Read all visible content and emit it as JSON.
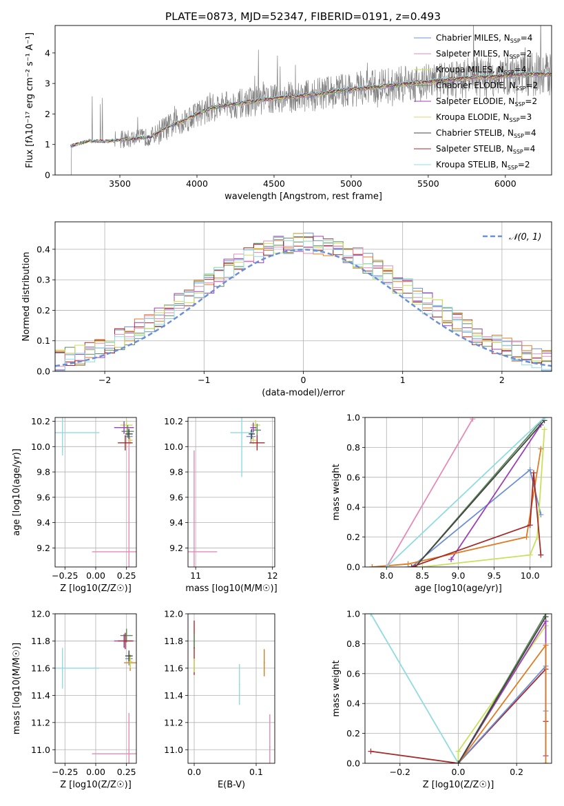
{
  "figure_title": "PLATE=0873, MJD=52347, FIBERID=0191, z=0.493",
  "model_colors": [
    "#6b8fd6",
    "#e58ab8",
    "#c8e05a",
    "#5a8a5a",
    "#9c3fb3",
    "#e0d070",
    "#444444",
    "#a52a2a",
    "#8fdbe0"
  ],
  "hist_colors": [
    "#6b8fd6",
    "#e07a20",
    "#5a8a5a",
    "#9c3fb3",
    "#a52a2a",
    "#e58ab8",
    "#c8e05a",
    "#8fdbe0"
  ],
  "chart_data": [
    {
      "type": "line",
      "xlabel": "wavelength [Angstrom, rest frame]",
      "ylabel": "Flux [fλ10⁻¹⁷ erg cm⁻² s⁻¹ A⁻¹]",
      "xlim": [
        3080,
        6300
      ],
      "ylim": [
        0,
        4.9
      ],
      "xticks": [
        3500,
        4000,
        4500,
        5000,
        5500,
        6000
      ],
      "yticks": [
        0,
        1,
        2,
        3,
        4
      ],
      "grid": false,
      "legend_position": "upper-right",
      "legend": [
        "Chabrier MILES, N_SSP=4",
        "Salpeter MILES, N_SSP=2",
        "Kroupa MILES, N_SSP=4",
        "Chabrier ELODIE, N_SSP=2",
        "Salpeter ELODIE, N_SSP=2",
        "Kroupa ELODIE, N_SSP=3",
        "Chabrier STELIB, N_SSP=4",
        "Salpeter STELIB, N_SSP=4",
        "Kroupa STELIB, N_SSP=2"
      ],
      "data_color": "#808080",
      "data_range": [
        3180,
        6300
      ],
      "model_trend": {
        "x": [
          3180,
          3250,
          3300,
          3400,
          3500,
          3600,
          3700,
          3800,
          3900,
          4000,
          4100,
          4200,
          4300,
          4400,
          4500,
          4600,
          4700,
          4800,
          4900,
          5000,
          5100,
          5200,
          5300,
          5400,
          5500,
          5600,
          5700,
          5800,
          5900,
          6000,
          6100,
          6200
        ],
        "y": [
          0.95,
          1.05,
          1.12,
          1.1,
          1.15,
          1.2,
          1.25,
          1.55,
          1.75,
          2.0,
          2.2,
          2.3,
          2.35,
          2.45,
          2.5,
          2.55,
          2.6,
          2.65,
          2.75,
          2.8,
          2.85,
          2.9,
          2.95,
          3.0,
          3.05,
          3.1,
          3.15,
          3.2,
          3.2,
          3.25,
          3.3,
          3.3
        ]
      }
    },
    {
      "type": "line",
      "xlabel": "(data-model)/error",
      "ylabel": "Normed distribution",
      "xlim": [
        -2.5,
        2.5
      ],
      "ylim": [
        0,
        0.49
      ],
      "xticks": [
        -2,
        -1,
        0,
        1,
        2
      ],
      "yticks": [
        0.0,
        0.1,
        0.2,
        0.3,
        0.4
      ],
      "grid": true,
      "legend": [
        "𝒩(0, 1)"
      ],
      "legend_position": "upper-right",
      "bin_width": 0.1
    },
    {
      "type": "scatter",
      "xlabel": "Z [log10(Z/Z☉)]",
      "ylabel": "age [log10(age/yr)]",
      "xlim": [
        -0.33,
        0.33
      ],
      "ylim": [
        9.05,
        10.23
      ],
      "xticks": [
        -0.25,
        0.0,
        0.25
      ],
      "yticks": [
        9.2,
        9.4,
        9.6,
        9.8,
        10.0,
        10.2
      ],
      "grid": true,
      "points": [
        {
          "x": 0.27,
          "y": 10.08,
          "xerr": 0.03,
          "yerr": 0.05,
          "c": 0
        },
        {
          "x": 0.27,
          "y": 9.17,
          "xerr": 0.3,
          "yerr": 0.95,
          "c": 1
        },
        {
          "x": 0.25,
          "y": 10.17,
          "xerr": 0.05,
          "yerr": 0.04,
          "c": 2
        },
        {
          "x": 0.26,
          "y": 10.12,
          "xerr": 0.05,
          "yerr": 0.05,
          "c": 3
        },
        {
          "x": 0.23,
          "y": 10.15,
          "xerr": 0.08,
          "yerr": 0.05,
          "c": 4
        },
        {
          "x": 0.28,
          "y": 10.05,
          "xerr": 0.02,
          "yerr": 0.03,
          "c": 5
        },
        {
          "x": 0.27,
          "y": 10.1,
          "xerr": 0.03,
          "yerr": 0.04,
          "c": 6
        },
        {
          "x": 0.24,
          "y": 10.03,
          "xerr": 0.06,
          "yerr": 0.06,
          "c": 7
        },
        {
          "x": -0.27,
          "y": 10.11,
          "xerr": 0.3,
          "yerr": 0.18,
          "c": 8
        }
      ]
    },
    {
      "type": "scatter",
      "xlabel": "mass [log10(M/M☉)]",
      "ylabel": "",
      "xlim": [
        10.9,
        12.03
      ],
      "ylim": [
        9.05,
        10.23
      ],
      "xticks": [
        11,
        12
      ],
      "yticks": [
        9.2,
        9.4,
        9.6,
        9.8,
        10.0,
        10.2
      ],
      "grid": true,
      "points": [
        {
          "x": 11.72,
          "y": 10.08,
          "xerr": 0.06,
          "yerr": 0.05,
          "c": 0
        },
        {
          "x": 10.98,
          "y": 9.17,
          "xerr": 0.3,
          "yerr": 0.8,
          "c": 1
        },
        {
          "x": 11.78,
          "y": 10.17,
          "xerr": 0.06,
          "yerr": 0.04,
          "c": 2
        },
        {
          "x": 11.8,
          "y": 10.13,
          "xerr": 0.05,
          "yerr": 0.05,
          "c": 3
        },
        {
          "x": 11.75,
          "y": 10.15,
          "xerr": 0.04,
          "yerr": 0.04,
          "c": 4
        },
        {
          "x": 11.75,
          "y": 10.05,
          "xerr": 0.04,
          "yerr": 0.03,
          "c": 5
        },
        {
          "x": 11.73,
          "y": 10.1,
          "xerr": 0.04,
          "yerr": 0.04,
          "c": 6
        },
        {
          "x": 11.8,
          "y": 10.03,
          "xerr": 0.1,
          "yerr": 0.06,
          "c": 7
        },
        {
          "x": 11.6,
          "y": 10.11,
          "xerr": 0.15,
          "yerr": 0.35,
          "c": 8
        }
      ]
    },
    {
      "type": "line",
      "xlabel": "age [log10(age/yr)]",
      "ylabel": "mass weight",
      "xlim": [
        7.7,
        10.3
      ],
      "ylim": [
        0,
        1
      ],
      "xticks": [
        8.0,
        8.5,
        9.0,
        9.5,
        10.0
      ],
      "yticks": [
        0.0,
        0.2,
        0.4,
        0.6,
        0.8,
        1.0
      ],
      "grid": true,
      "series": [
        {
          "c": 0,
          "x": [
            8.3,
            8.35,
            10.0,
            10.15
          ],
          "y": [
            0.0,
            0.0,
            0.65,
            0.35
          ]
        },
        {
          "c": 1,
          "x": [
            7.8,
            8.0,
            9.2
          ],
          "y": [
            0.0,
            0.0,
            0.99
          ]
        },
        {
          "c": 2,
          "x": [
            8.5,
            10.0,
            10.1,
            10.2
          ],
          "y": [
            0.0,
            0.08,
            0.2,
            0.92
          ]
        },
        {
          "c": 3,
          "x": [
            8.4,
            10.2
          ],
          "y": [
            0.0,
            1.0
          ]
        },
        {
          "c": 4,
          "x": [
            8.9,
            10.15
          ],
          "y": [
            0.05,
            0.95
          ]
        },
        {
          "c": 9,
          "x": [
            7.8,
            8.3,
            9.95,
            10.15
          ],
          "y": [
            0.0,
            0.02,
            0.2,
            0.79
          ]
        },
        {
          "c": 6,
          "x": [
            8.4,
            10.2
          ],
          "y": [
            0.0,
            0.98
          ]
        },
        {
          "c": 7,
          "x": [
            8.35,
            10.0,
            10.05,
            10.15
          ],
          "y": [
            0.0,
            0.28,
            0.63,
            0.08
          ]
        },
        {
          "c": 8,
          "x": [
            8.0,
            10.2
          ],
          "y": [
            0.0,
            1.0
          ]
        }
      ]
    },
    {
      "type": "scatter",
      "xlabel": "Z [log10(Z/Z☉)]",
      "ylabel": "mass [log10(M/M☉)]",
      "xlim": [
        -0.33,
        0.33
      ],
      "ylim": [
        10.9,
        12.0
      ],
      "xticks": [
        -0.25,
        0.0,
        0.25
      ],
      "yticks": [
        11.0,
        11.2,
        11.4,
        11.6,
        11.8,
        12.0
      ],
      "grid": true,
      "points": [
        {
          "x": 0.27,
          "y": 11.67,
          "xerr": 0.03,
          "yerr": 0.05,
          "c": 0
        },
        {
          "x": 0.27,
          "y": 10.97,
          "xerr": 0.3,
          "yerr": 0.3,
          "c": 1
        },
        {
          "x": 0.28,
          "y": 11.64,
          "xerr": 0.05,
          "yerr": 0.06,
          "c": 9
        },
        {
          "x": 0.25,
          "y": 11.84,
          "xerr": 0.05,
          "yerr": 0.05,
          "c": 3
        },
        {
          "x": 0.23,
          "y": 11.8,
          "xerr": 0.08,
          "yerr": 0.05,
          "c": 4
        },
        {
          "x": 0.28,
          "y": 11.65,
          "xerr": 0.02,
          "yerr": 0.05,
          "c": 2
        },
        {
          "x": 0.27,
          "y": 11.69,
          "xerr": 0.03,
          "yerr": 0.04,
          "c": 6
        },
        {
          "x": 0.24,
          "y": 11.8,
          "xerr": 0.06,
          "yerr": 0.06,
          "c": 7
        },
        {
          "x": -0.27,
          "y": 11.6,
          "xerr": 0.3,
          "yerr": 0.15,
          "c": 8
        }
      ]
    },
    {
      "type": "scatter",
      "xlabel": "E(B-V)",
      "ylabel": "",
      "xlim": [
        -0.01,
        0.13
      ],
      "ylim": [
        10.9,
        12.0
      ],
      "xticks": [
        0.0,
        0.1
      ],
      "yticks": [
        11.0,
        11.2,
        11.4,
        11.6,
        11.8,
        12.0
      ],
      "grid": true,
      "points": [
        {
          "x": 0.0,
          "y": 11.75,
          "xerr": 0,
          "yerr": 0.2,
          "c": 7
        },
        {
          "x": 0.0,
          "y": 11.62,
          "xerr": 0,
          "yerr": 0.05,
          "c": 2
        },
        {
          "x": 0.0,
          "y": 11.8,
          "xerr": 0,
          "yerr": 0.05,
          "c": 3
        },
        {
          "x": 0.073,
          "y": 11.48,
          "xerr": 0,
          "yerr": 0.15,
          "c": 8
        },
        {
          "x": 0.113,
          "y": 11.64,
          "xerr": 0,
          "yerr": 0.1,
          "c": 9
        },
        {
          "x": 0.122,
          "y": 11.02,
          "xerr": 0,
          "yerr": 0.24,
          "c": 1
        }
      ]
    },
    {
      "type": "line",
      "xlabel": "Z [log10(Z/Z☉)]",
      "ylabel": "mass weight",
      "xlim": [
        -0.32,
        0.32
      ],
      "ylim": [
        0,
        1
      ],
      "xticks": [
        -0.2,
        0.0,
        0.2
      ],
      "yticks": [
        0.0,
        0.2,
        0.4,
        0.6,
        0.8,
        1.0
      ],
      "grid": true,
      "series": [
        {
          "c": 8,
          "x": [
            -0.3,
            0.0
          ],
          "y": [
            1.0,
            0.0
          ]
        },
        {
          "c": 7,
          "x": [
            -0.3,
            0.0,
            0.3,
            0.3
          ],
          "y": [
            0.08,
            0.0,
            0.63,
            0.28
          ]
        },
        {
          "c": 0,
          "x": [
            0.0,
            0.3,
            0.3
          ],
          "y": [
            0.0,
            0.65,
            0.35
          ]
        },
        {
          "c": 2,
          "x": [
            0.0,
            0.0,
            0.3
          ],
          "y": [
            0.0,
            0.08,
            0.92
          ]
        },
        {
          "c": 3,
          "x": [
            0.0,
            0.3
          ],
          "y": [
            0.0,
            1.0
          ]
        },
        {
          "c": 4,
          "x": [
            0.0,
            0.3,
            0.3
          ],
          "y": [
            0.0,
            0.95,
            0.05
          ]
        },
        {
          "c": 9,
          "x": [
            0.0,
            0.3,
            0.3
          ],
          "y": [
            0.0,
            0.79,
            0.0
          ]
        },
        {
          "c": 6,
          "x": [
            0.0,
            0.3
          ],
          "y": [
            0.0,
            0.98
          ]
        }
      ]
    }
  ]
}
